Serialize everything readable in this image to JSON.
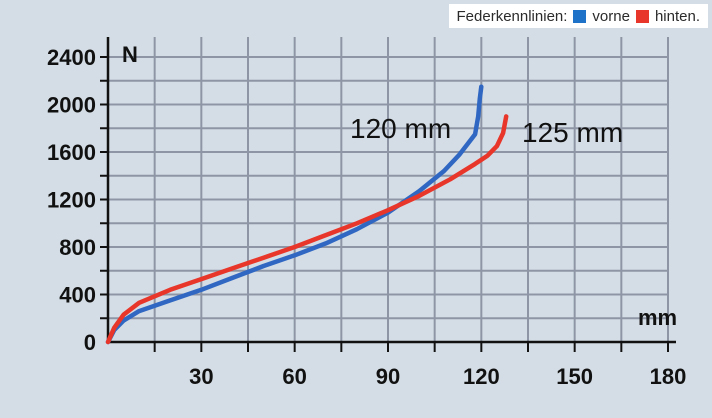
{
  "chart_data": {
    "type": "line",
    "title": "",
    "legend": {
      "title": "Federkennlinien:",
      "entries": [
        {
          "label": "vorne",
          "color": "#1e73c8"
        },
        {
          "label": "hinten.",
          "color": "#e8362a"
        }
      ],
      "placement": "top-right"
    },
    "xlabel": "mm",
    "ylabel": "N",
    "xlim": [
      0,
      180
    ],
    "ylim": [
      0,
      2400
    ],
    "xticks": [
      30,
      60,
      90,
      120,
      150,
      180
    ],
    "yticks": [
      0,
      400,
      800,
      1200,
      1600,
      2000,
      2400
    ],
    "grid": true,
    "series": [
      {
        "color": "#2f67c3",
        "annotation": "120 mm",
        "points": [
          [
            0,
            0
          ],
          [
            2,
            100
          ],
          [
            5,
            180
          ],
          [
            10,
            260
          ],
          [
            20,
            350
          ],
          [
            30,
            440
          ],
          [
            40,
            540
          ],
          [
            50,
            640
          ],
          [
            60,
            730
          ],
          [
            70,
            830
          ],
          [
            80,
            950
          ],
          [
            90,
            1090
          ],
          [
            100,
            1270
          ],
          [
            108,
            1440
          ],
          [
            113,
            1580
          ],
          [
            118,
            1750
          ],
          [
            119,
            1900
          ],
          [
            119.5,
            2050
          ],
          [
            120,
            2150
          ]
        ]
      },
      {
        "color": "#e8362a",
        "annotation": "125 mm",
        "points": [
          [
            0,
            0
          ],
          [
            2,
            120
          ],
          [
            5,
            230
          ],
          [
            10,
            330
          ],
          [
            20,
            440
          ],
          [
            30,
            530
          ],
          [
            40,
            620
          ],
          [
            50,
            710
          ],
          [
            60,
            800
          ],
          [
            70,
            900
          ],
          [
            80,
            1000
          ],
          [
            90,
            1110
          ],
          [
            100,
            1230
          ],
          [
            110,
            1370
          ],
          [
            118,
            1500
          ],
          [
            122,
            1570
          ],
          [
            125,
            1650
          ],
          [
            127,
            1760
          ],
          [
            128,
            1900
          ]
        ]
      }
    ]
  }
}
